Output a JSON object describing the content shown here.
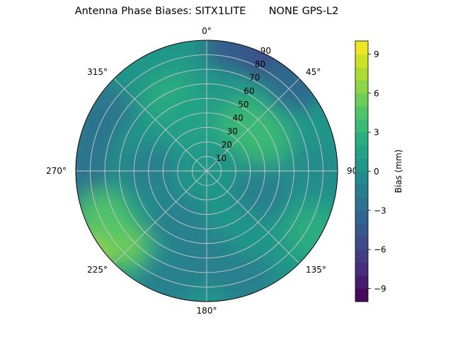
{
  "chart_data": {
    "type": "heatmap",
    "projection": "polar",
    "title": "Antenna Phase Biases: SITX1LITE       NONE GPS-L2",
    "theta_direction": "clockwise",
    "theta_zero": "north",
    "theta_ticks": [
      "0°",
      "45°",
      "90°",
      "135°",
      "180°",
      "225°",
      "270°",
      "315°"
    ],
    "r_ticks": [
      "10",
      "20",
      "30",
      "40",
      "50",
      "60",
      "70",
      "80",
      "90"
    ],
    "r_range": [
      0,
      90
    ],
    "grid": true,
    "colormap": "viridis",
    "colorbar": {
      "label": "Bias (mm)",
      "range": [
        -10,
        10
      ],
      "levels": 20,
      "ticks": [
        "−9",
        "−6",
        "−3",
        "0",
        "3",
        "6",
        "9"
      ],
      "tick_values": [
        -9,
        -6,
        -3,
        0,
        3,
        6,
        9
      ]
    },
    "background_value": 0.5,
    "field_features": [
      {
        "azimuth": 25,
        "r": 88,
        "value": -6
      },
      {
        "azimuth": 10,
        "r": 88,
        "value": -4.5
      },
      {
        "azimuth": 45,
        "r": 86,
        "value": -4
      },
      {
        "azimuth": 280,
        "r": 85,
        "value": -3
      },
      {
        "azimuth": 300,
        "r": 82,
        "value": -3
      },
      {
        "azimuth": 262,
        "r": 85,
        "value": -2.5
      },
      {
        "azimuth": 236,
        "r": 86,
        "value": 8
      },
      {
        "azimuth": 228,
        "r": 76,
        "value": 5
      },
      {
        "azimuth": 246,
        "r": 78,
        "value": 4
      },
      {
        "azimuth": 40,
        "r": 42,
        "value": 3.5
      },
      {
        "azimuth": 60,
        "r": 45,
        "value": 3
      },
      {
        "azimuth": 335,
        "r": 55,
        "value": 2
      },
      {
        "azimuth": 345,
        "r": 35,
        "value": 1.5
      },
      {
        "azimuth": 110,
        "r": 40,
        "value": -2
      },
      {
        "azimuth": 180,
        "r": 60,
        "value": -2
      },
      {
        "azimuth": 200,
        "r": 82,
        "value": -2
      },
      {
        "azimuth": 160,
        "r": 82,
        "value": -1.5
      },
      {
        "azimuth": 270,
        "r": 40,
        "value": -2
      },
      {
        "azimuth": 120,
        "r": 84,
        "value": 2
      },
      {
        "azimuth": 210,
        "r": 40,
        "value": -1.5
      },
      {
        "azimuth": 90,
        "r": 75,
        "value": -1
      }
    ]
  }
}
